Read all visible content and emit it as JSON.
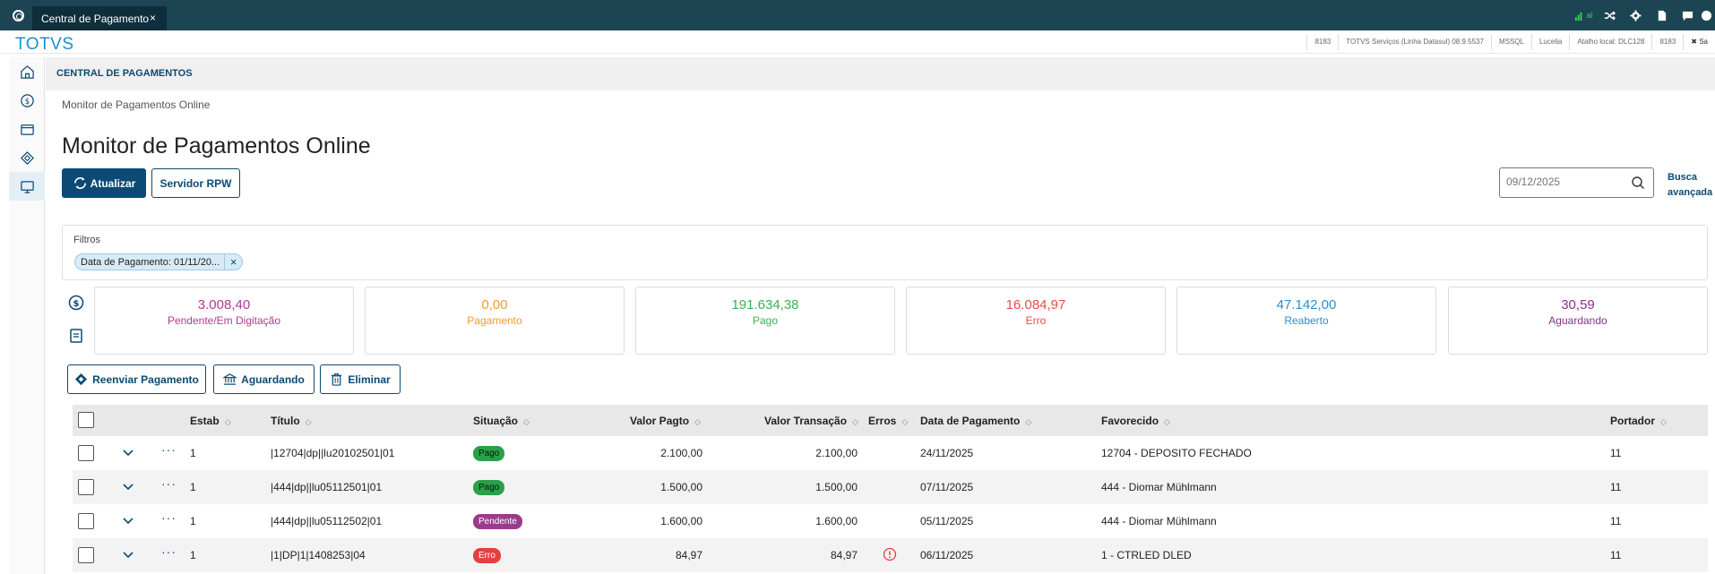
{
  "topbar": {
    "tab_title": "Central de Pagamento",
    "tab_close": "×",
    "signal_label": "al"
  },
  "brand": "TOTVS",
  "infobar": [
    "8183",
    "TOTVS Serviços (Linha Datasul) 08.9.5537",
    "MSSQL",
    "Lucelia",
    "Atalho local: DLC128",
    "8183",
    "✖ Sa"
  ],
  "module_title": "CENTRAL DE PAGAMENTOS",
  "breadcrumb": "Monitor de Pagamentos Online",
  "page_title": "Monitor de Pagamentos Online",
  "toolbar": {
    "refresh_label": "Atualizar",
    "server_label": "Servidor RPW",
    "date_placeholder": "09/12/2025",
    "advanced_search_line1": "Busca",
    "advanced_search_line2": "avançada"
  },
  "filters": {
    "label": "Filtros",
    "chip": "Data de Pagamento: 01/11/20...",
    "chip_close": "×"
  },
  "cards": [
    {
      "value": "3.008,40",
      "label": "Pendente/Em Digitação",
      "color": "#b03a8e"
    },
    {
      "value": "0,00",
      "label": "Pagamento",
      "color": "#f29a2e"
    },
    {
      "value": "191.634,38",
      "label": "Pago",
      "color": "#3bb054"
    },
    {
      "value": "16.084,97",
      "label": "Erro",
      "color": "#e84b4b"
    },
    {
      "value": "47.142,00",
      "label": "Reaberto",
      "color": "#2a8fd1"
    },
    {
      "value": "30,59",
      "label": "Aguardando",
      "color": "#8a2f8a"
    }
  ],
  "actions": {
    "resend": "Reenviar Pagamento",
    "waiting": "Aguardando",
    "delete": "Eliminar"
  },
  "table": {
    "headers": {
      "estab": "Estab",
      "titulo": "Título",
      "situacao": "Situação",
      "valor_pagto": "Valor Pagto",
      "valor_transacao": "Valor Transação",
      "erros": "Erros",
      "data_pagamento": "Data de Pagamento",
      "favorecido": "Favorecido",
      "portador": "Portador"
    },
    "rows": [
      {
        "estab": "1",
        "titulo": "|12704|dp||lu20102501|01",
        "situacao": "Pago",
        "valor_pagto": "2.100,00",
        "valor_transacao": "2.100,00",
        "data": "24/11/2025",
        "favorecido": "12704 - DEPOSITO FECHADO",
        "portador": "11"
      },
      {
        "estab": "1",
        "titulo": "|444|dp||lu05112501|01",
        "situacao": "Pago",
        "valor_pagto": "1.500,00",
        "valor_transacao": "1.500,00",
        "data": "07/11/2025",
        "favorecido": "444 - Diomar Mühlmann",
        "portador": "11"
      },
      {
        "estab": "1",
        "titulo": "|444|dp||lu05112502|01",
        "situacao": "Pendente",
        "valor_pagto": "1.600,00",
        "valor_transacao": "1.600,00",
        "data": "05/11/2025",
        "favorecido": "444 - Diomar Mühlmann",
        "portador": "11"
      },
      {
        "estab": "1",
        "titulo": "|1|DP|1|1408253|04",
        "situacao": "Erro",
        "valor_pagto": "84,97",
        "valor_transacao": "84,97",
        "data": "06/11/2025",
        "favorecido": "1 - CTRLED DLED",
        "portador": "11"
      }
    ]
  }
}
